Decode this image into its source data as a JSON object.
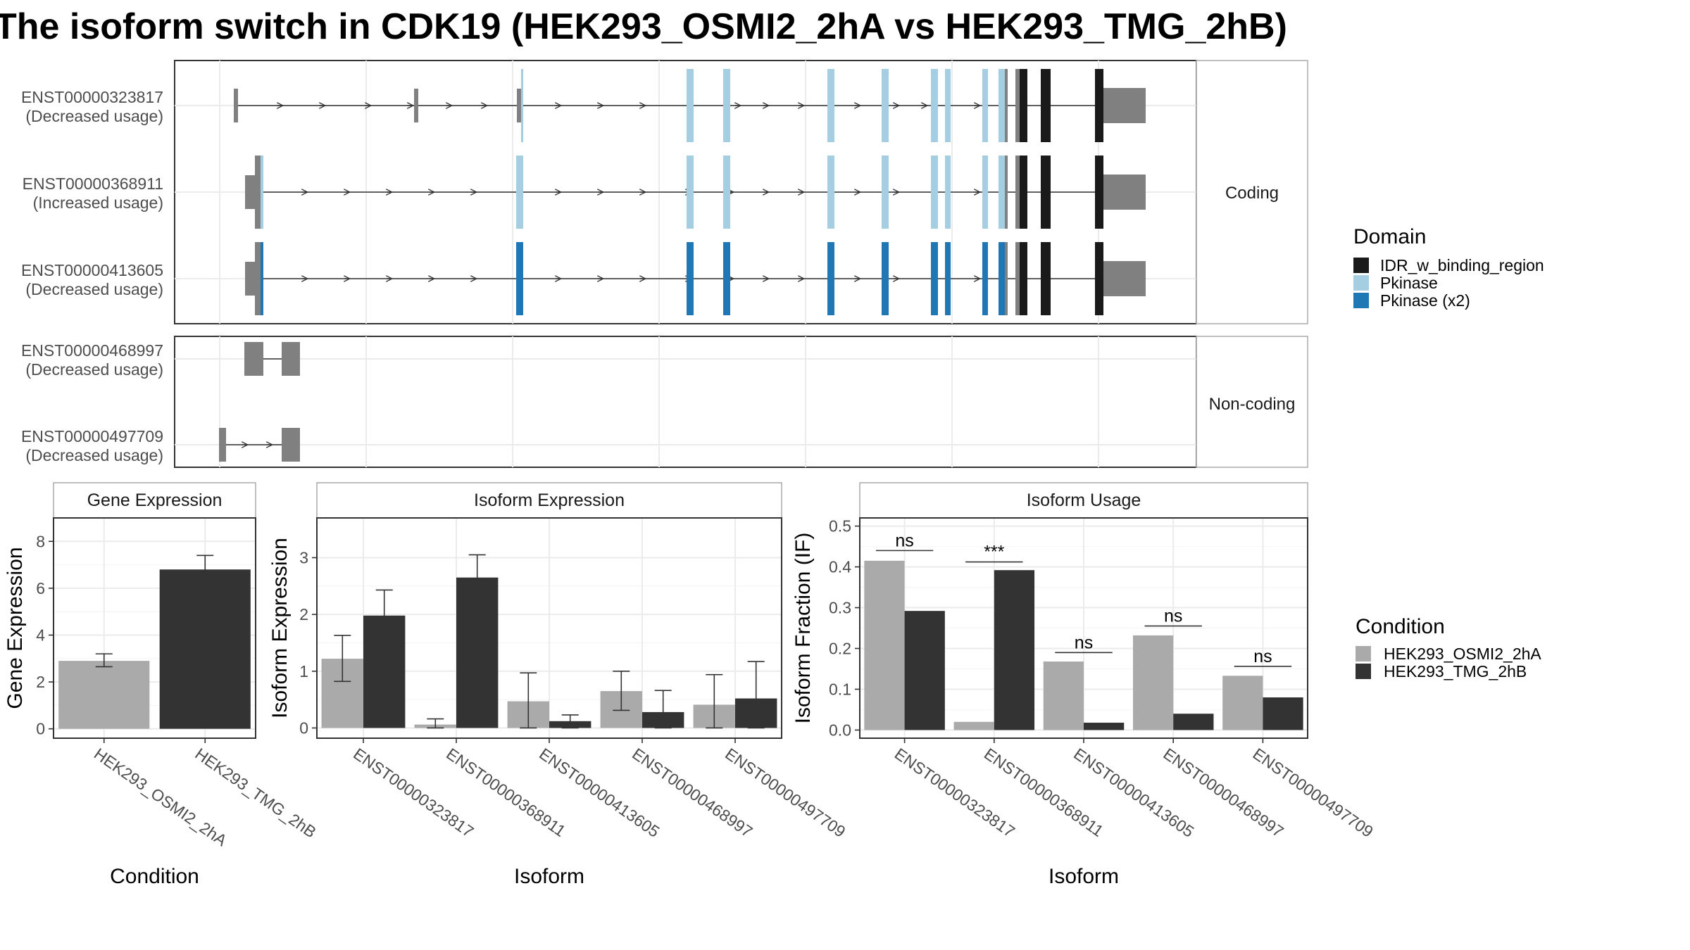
{
  "title": "The isoform switch in CDK19 (HEK293_OSMI2_2hA vs HEK293_TMG_2hB)",
  "structure": {
    "transcripts": [
      {
        "id": "ENST00000323817",
        "usage": "(Decreased usage)",
        "panel": "Coding"
      },
      {
        "id": "ENST00000368911",
        "usage": "(Increased usage)",
        "panel": "Coding"
      },
      {
        "id": "ENST00000413605",
        "usage": "(Decreased usage)",
        "panel": "Coding"
      },
      {
        "id": "ENST00000468997",
        "usage": "(Decreased usage)",
        "panel": "Non-coding"
      },
      {
        "id": "ENST00000497709",
        "usage": "(Decreased usage)",
        "panel": "Non-coding"
      }
    ],
    "panels": [
      "Coding",
      "Non-coding"
    ],
    "domain_legend": {
      "title": "Domain",
      "items": [
        {
          "label": "IDR_w_binding_region",
          "color": "#1a1a1a"
        },
        {
          "label": "Pkinase",
          "color": "#a6cee3"
        },
        {
          "label": "Pkinase (x2)",
          "color": "#1f78b4"
        }
      ]
    },
    "exon_color": "#808080"
  },
  "condition_legend": {
    "title": "Condition",
    "items": [
      {
        "label": "HEK293_OSMI2_2hA",
        "color": "#aaaaaa"
      },
      {
        "label": "HEK293_TMG_2hB",
        "color": "#333333"
      }
    ]
  },
  "chart_data": [
    {
      "type": "bar",
      "title": "Gene Expression",
      "xlabel": "Condition",
      "ylabel": "Gene Expression",
      "categories": [
        "HEK293_OSMI2_2hA",
        "HEK293_TMG_2hB"
      ],
      "values": [
        2.9,
        6.8
      ],
      "error_low": [
        2.65,
        6.2
      ],
      "error_high": [
        3.2,
        7.4
      ],
      "ylim": [
        -0.4,
        9
      ],
      "yticks": [
        0,
        2,
        4,
        6,
        8
      ]
    },
    {
      "type": "bar",
      "title": "Isoform Expression",
      "xlabel": "Isoform",
      "ylabel": "Isoform Expression",
      "categories": [
        "ENST00000323817",
        "ENST00000368911",
        "ENST00000413605",
        "ENST00000468997",
        "ENST00000497709"
      ],
      "series": [
        {
          "name": "HEK293_OSMI2_2hA",
          "values": [
            1.22,
            0.06,
            0.47,
            0.65,
            0.41
          ],
          "error_low": [
            0.82,
            0.0,
            0.0,
            0.31,
            0.0
          ],
          "error_high": [
            1.63,
            0.16,
            0.97,
            1.0,
            0.94
          ]
        },
        {
          "name": "HEK293_TMG_2hB",
          "values": [
            1.98,
            2.65,
            0.12,
            0.28,
            0.52
          ],
          "error_low": [
            1.54,
            2.27,
            0.0,
            0.0,
            0.0
          ],
          "error_high": [
            2.43,
            3.05,
            0.23,
            0.66,
            1.17
          ]
        }
      ],
      "ylim": [
        -0.18,
        3.7
      ],
      "yticks": [
        0,
        1,
        2,
        3
      ]
    },
    {
      "type": "bar",
      "title": "Isoform Usage",
      "xlabel": "Isoform",
      "ylabel": "Isoform Fraction (IF)",
      "categories": [
        "ENST00000323817",
        "ENST00000368911",
        "ENST00000413605",
        "ENST00000468997",
        "ENST00000497709"
      ],
      "series": [
        {
          "name": "HEK293_OSMI2_2hA",
          "values": [
            0.415,
            0.02,
            0.168,
            0.232,
            0.133
          ]
        },
        {
          "name": "HEK293_TMG_2hB",
          "values": [
            0.292,
            0.392,
            0.018,
            0.04,
            0.08
          ]
        }
      ],
      "significance": [
        "ns",
        "***",
        "ns",
        "ns",
        "ns"
      ],
      "sig_line_y": [
        0.44,
        0.412,
        0.19,
        0.255,
        0.156
      ],
      "ylim": [
        -0.02,
        0.52
      ],
      "yticks": [
        0.0,
        0.1,
        0.2,
        0.3,
        0.4,
        0.5
      ]
    }
  ]
}
